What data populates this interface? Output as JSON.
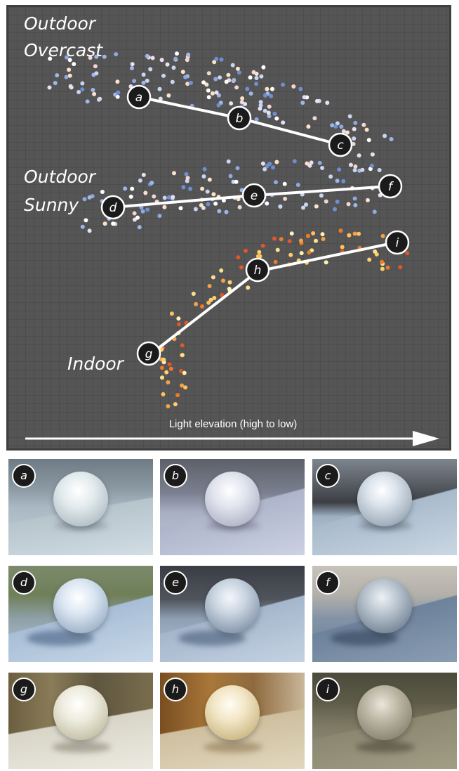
{
  "group_labels": {
    "outdoor_overcast_line1": "Outdoor",
    "outdoor_overcast_line2": "Overcast",
    "outdoor_sunny_line1": "Outdoor",
    "outdoor_sunny_line2": "Sunny",
    "indoor": "Indoor"
  },
  "axis_label": "Light elevation (high to low)",
  "markers": [
    "a",
    "b",
    "c",
    "d",
    "e",
    "f",
    "g",
    "h",
    "i"
  ],
  "thumbnails": [
    {
      "label": "a",
      "tone": "gray-blue outdoor overcast"
    },
    {
      "label": "b",
      "tone": "light blue-gray overcast"
    },
    {
      "label": "c",
      "tone": "dark road overcast"
    },
    {
      "label": "d",
      "tone": "green grass sunny"
    },
    {
      "label": "e",
      "tone": "dark asphalt sunny"
    },
    {
      "label": "f",
      "tone": "beach sunny"
    },
    {
      "label": "g",
      "tone": "warm indoor"
    },
    {
      "label": "h",
      "tone": "orange indoor"
    },
    {
      "label": "i",
      "tone": "dim olive indoor"
    }
  ],
  "colors": {
    "panel_background": "#555556",
    "cool_points": "#9fb7e8",
    "warm_points": "#f2a24a",
    "marker_fill": "#1b1b1b",
    "line": "#ffffff"
  }
}
